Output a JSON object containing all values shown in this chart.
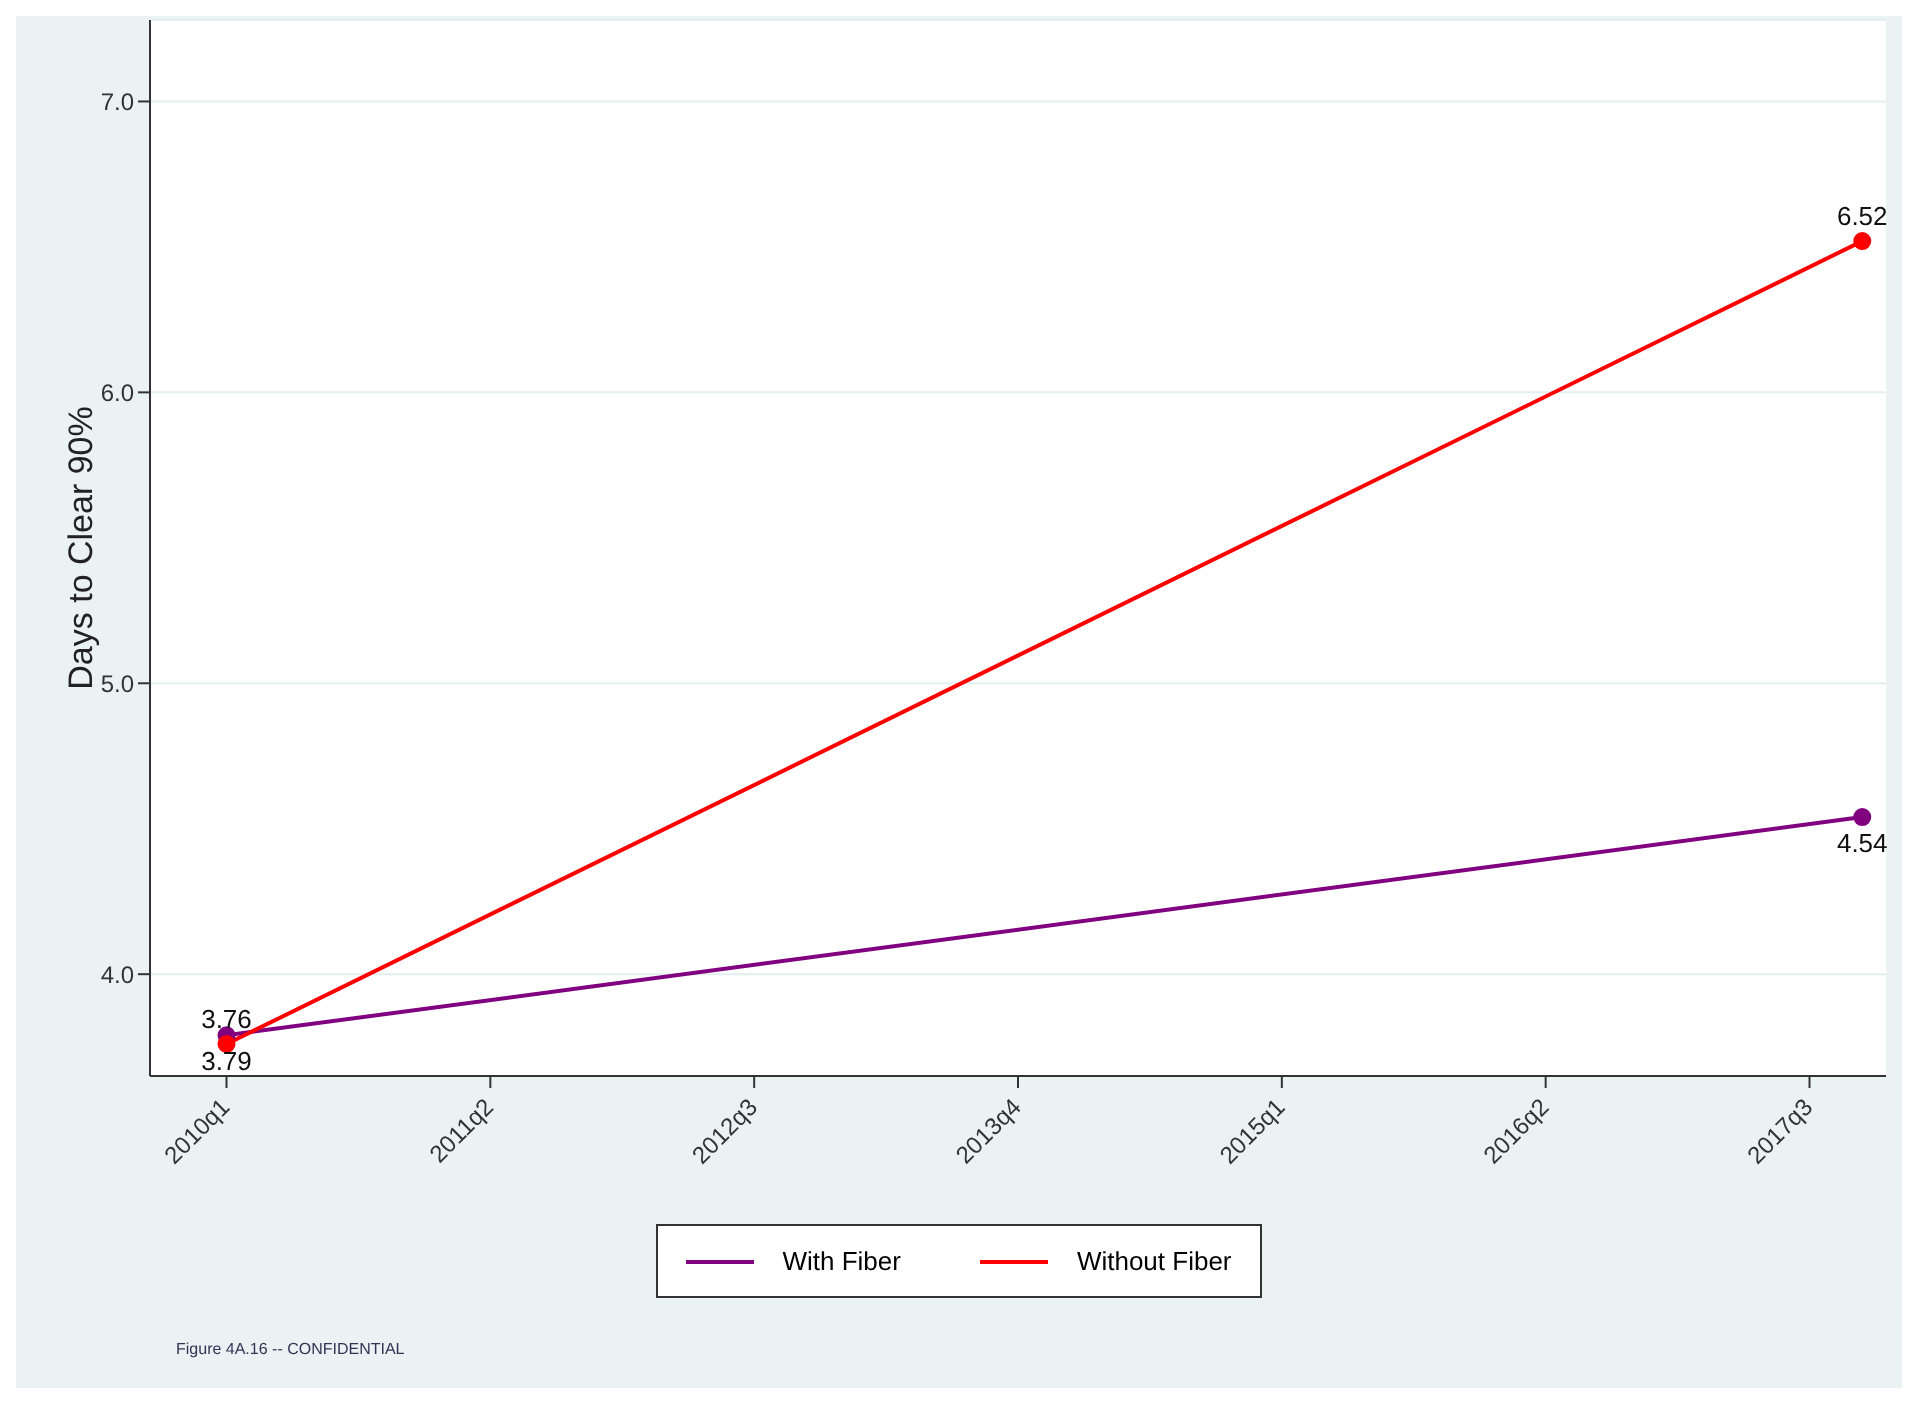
{
  "chart_data": {
    "type": "line",
    "ylabel": "Days to Clear 90%",
    "categories": [
      "2010q1",
      null,
      null,
      null,
      null,
      "2011q2",
      null,
      null,
      null,
      null,
      "2012q3",
      null,
      null,
      null,
      null,
      "2013q4",
      null,
      null,
      null,
      null,
      "2015q1",
      null,
      null,
      null,
      null,
      "2016q2",
      null,
      null,
      null,
      null,
      "2017q3",
      null
    ],
    "series": [
      {
        "name": "With Fiber",
        "color": "#800080",
        "values": [
          3.79,
          null,
          null,
          null,
          null,
          null,
          null,
          null,
          null,
          null,
          null,
          null,
          null,
          null,
          null,
          null,
          null,
          null,
          null,
          null,
          null,
          null,
          null,
          null,
          null,
          null,
          null,
          null,
          null,
          null,
          null,
          4.54
        ],
        "value_labels": [
          "3.79",
          null,
          null,
          null,
          null,
          null,
          null,
          null,
          null,
          null,
          null,
          null,
          null,
          null,
          null,
          null,
          null,
          null,
          null,
          null,
          null,
          null,
          null,
          null,
          null,
          null,
          null,
          null,
          null,
          null,
          null,
          "4.54"
        ]
      },
      {
        "name": "Without Fiber",
        "color": "#ff0000",
        "values": [
          3.76,
          null,
          null,
          null,
          null,
          null,
          null,
          null,
          null,
          null,
          null,
          null,
          null,
          null,
          null,
          null,
          null,
          null,
          null,
          null,
          null,
          null,
          null,
          null,
          null,
          null,
          null,
          null,
          null,
          null,
          null,
          6.52
        ],
        "value_labels": [
          "3.76",
          null,
          null,
          null,
          null,
          null,
          null,
          null,
          null,
          null,
          null,
          null,
          null,
          null,
          null,
          null,
          null,
          null,
          null,
          null,
          null,
          null,
          null,
          null,
          null,
          null,
          null,
          null,
          null,
          null,
          null,
          "6.52"
        ]
      }
    ],
    "ylim": [
      3.65,
      7.28
    ],
    "yticks": [
      {
        "value": 4,
        "label": "4.0"
      },
      {
        "value": 5,
        "label": "5.0"
      },
      {
        "value": 6,
        "label": "6.0"
      },
      {
        "value": 7,
        "label": "7.0"
      }
    ],
    "grid": "y",
    "legend": "bottom",
    "marker": "circle",
    "line_style": "solid",
    "annotations": [
      "Figure 4A.16 -- CONFIDENTIAL"
    ]
  }
}
